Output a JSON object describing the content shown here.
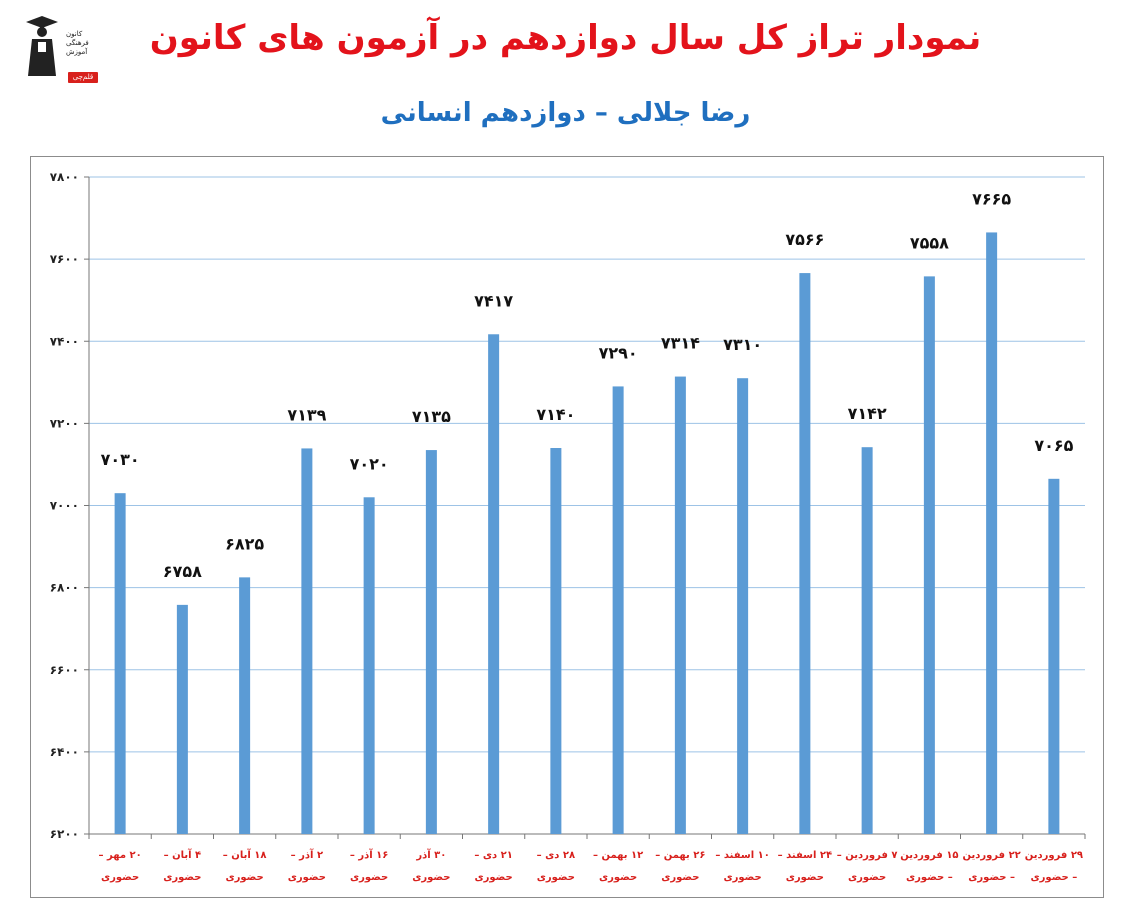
{
  "header": {
    "title": "نمودار تراز کل سال دوازدهم در آزمون های کانون",
    "subtitle": "رضا جلالی – دوازدهم انسانی"
  },
  "logo": {
    "lines": [
      "کانون",
      "فرهنگی",
      "آموزش"
    ],
    "badge": "قلم‌چی"
  },
  "colors": {
    "title": "#e3131b",
    "subtitle": "#1f6fbf",
    "bar": "#5b9bd5",
    "category_label": "#d8201c",
    "gridline": "#9dc3e6"
  },
  "chart_data": {
    "type": "bar",
    "title": "",
    "xlabel": "",
    "ylabel": "",
    "ylim": [
      6200,
      7800
    ],
    "yticks": [
      6200,
      6400,
      6600,
      6800,
      7000,
      7200,
      7400,
      7600,
      7800
    ],
    "ytick_labels": [
      "۶۲۰۰",
      "۶۴۰۰",
      "۶۶۰۰",
      "۶۸۰۰",
      "۷۰۰۰",
      "۷۲۰۰",
      "۷۴۰۰",
      "۷۶۰۰",
      "۷۸۰۰"
    ],
    "grid": true,
    "categories": [
      [
        "۲۰ مهر –",
        "حضوری"
      ],
      [
        "۴ آبان –",
        "حضوری"
      ],
      [
        "۱۸ آبان –",
        "حضوری"
      ],
      [
        "۲ آذر –",
        "حضوری"
      ],
      [
        "۱۶ آذر –",
        "حضوری"
      ],
      [
        "۳۰ آذر",
        "حضوری"
      ],
      [
        "۲۱ دی –",
        "حضوری"
      ],
      [
        "۲۸ دی –",
        "حضوری"
      ],
      [
        "۱۲ بهمن –",
        "حضوری"
      ],
      [
        "۲۶ بهمن –",
        "حضوری"
      ],
      [
        "۱۰ اسفند –",
        "حضوری"
      ],
      [
        "۲۴ اسفند –",
        "حضوری"
      ],
      [
        "۷ فروردین –",
        "حضوری"
      ],
      [
        "۱۵ فروردین",
        "– حضوری"
      ],
      [
        "۲۲ فروردین",
        "– حضوری"
      ],
      [
        "۲۹ فروردین",
        "– حضوری"
      ]
    ],
    "values": [
      7030,
      6758,
      6825,
      7139,
      7020,
      7135,
      7417,
      7140,
      7290,
      7314,
      7310,
      7566,
      7142,
      7558,
      7665,
      7065
    ],
    "value_labels": [
      "۷۰۳۰",
      "۶۷۵۸",
      "۶۸۲۵",
      "۷۱۳۹",
      "۷۰۲۰",
      "۷۱۳۵",
      "۷۴۱۷",
      "۷۱۴۰",
      "۷۲۹۰",
      "۷۳۱۴",
      "۷۳۱۰",
      "۷۵۶۶",
      "۷۱۴۲",
      "۷۵۵۸",
      "۷۶۶۵",
      "۷۰۶۵"
    ]
  }
}
